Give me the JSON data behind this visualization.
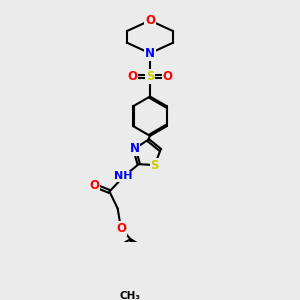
{
  "bg_color": "#ebebeb",
  "atom_colors": {
    "C": "#000000",
    "N": "#0000ff",
    "O": "#ff0000",
    "S": "#cccc00",
    "H": "#606060"
  },
  "bond_color": "#000000",
  "bond_width": 1.5,
  "font_size_atom": 8.5,
  "title": ""
}
